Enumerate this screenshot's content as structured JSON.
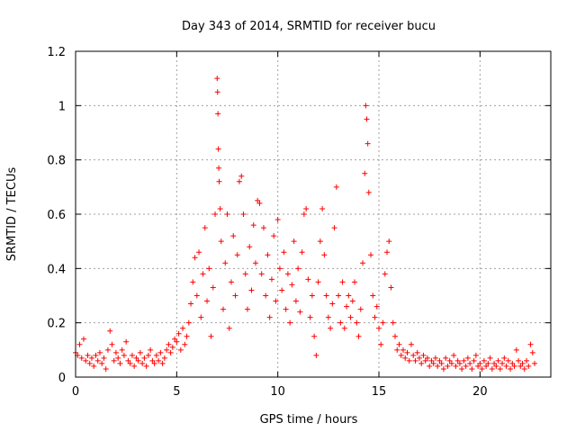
{
  "chart_data": {
    "type": "scatter",
    "title": "Day 343 of 2014, SRMTID for receiver bucu",
    "xlabel": "GPS time / hours",
    "ylabel": "SRMTID / TECUs",
    "xlim": [
      0,
      23.5
    ],
    "ylim": [
      0,
      1.2
    ],
    "grid": true,
    "x_ticks": [
      0,
      5,
      10,
      15,
      20
    ],
    "x_tick_labels": [
      "0",
      "5",
      "10",
      "15",
      "20"
    ],
    "y_ticks": [
      0,
      0.2,
      0.4,
      0.6,
      0.8,
      1,
      1.2
    ],
    "y_tick_labels": [
      "0",
      "0.2",
      "0.4",
      "0.6",
      "0.8",
      "1",
      "1.2"
    ],
    "marker": "plus",
    "series": [
      {
        "name": "SRMTID",
        "color": "#ff0000",
        "points": [
          [
            0.0,
            0.09
          ],
          [
            0.1,
            0.08
          ],
          [
            0.2,
            0.12
          ],
          [
            0.3,
            0.07
          ],
          [
            0.4,
            0.14
          ],
          [
            0.5,
            0.06
          ],
          [
            0.6,
            0.08
          ],
          [
            0.7,
            0.05
          ],
          [
            0.8,
            0.07
          ],
          [
            0.9,
            0.04
          ],
          [
            1.0,
            0.08
          ],
          [
            1.1,
            0.06
          ],
          [
            1.2,
            0.09
          ],
          [
            1.3,
            0.05
          ],
          [
            1.4,
            0.07
          ],
          [
            1.5,
            0.03
          ],
          [
            1.6,
            0.1
          ],
          [
            1.7,
            0.17
          ],
          [
            1.8,
            0.12
          ],
          [
            1.9,
            0.06
          ],
          [
            2.0,
            0.09
          ],
          [
            2.1,
            0.07
          ],
          [
            2.2,
            0.05
          ],
          [
            2.3,
            0.1
          ],
          [
            2.4,
            0.08
          ],
          [
            2.5,
            0.13
          ],
          [
            2.6,
            0.06
          ],
          [
            2.7,
            0.05
          ],
          [
            2.8,
            0.08
          ],
          [
            2.9,
            0.04
          ],
          [
            3.0,
            0.07
          ],
          [
            3.1,
            0.06
          ],
          [
            3.2,
            0.09
          ],
          [
            3.3,
            0.05
          ],
          [
            3.4,
            0.07
          ],
          [
            3.5,
            0.04
          ],
          [
            3.6,
            0.08
          ],
          [
            3.7,
            0.1
          ],
          [
            3.8,
            0.06
          ],
          [
            3.9,
            0.05
          ],
          [
            4.0,
            0.08
          ],
          [
            4.1,
            0.06
          ],
          [
            4.2,
            0.09
          ],
          [
            4.3,
            0.05
          ],
          [
            4.4,
            0.07
          ],
          [
            4.5,
            0.1
          ],
          [
            4.6,
            0.12
          ],
          [
            4.7,
            0.09
          ],
          [
            4.8,
            0.11
          ],
          [
            4.9,
            0.14
          ],
          [
            5.0,
            0.13
          ],
          [
            5.1,
            0.16
          ],
          [
            5.2,
            0.1
          ],
          [
            5.3,
            0.18
          ],
          [
            5.4,
            0.12
          ],
          [
            5.5,
            0.15
          ],
          [
            5.6,
            0.2
          ],
          [
            5.7,
            0.27
          ],
          [
            5.8,
            0.35
          ],
          [
            5.9,
            0.44
          ],
          [
            6.0,
            0.3
          ],
          [
            6.1,
            0.46
          ],
          [
            6.2,
            0.22
          ],
          [
            6.3,
            0.38
          ],
          [
            6.4,
            0.55
          ],
          [
            6.5,
            0.28
          ],
          [
            6.6,
            0.4
          ],
          [
            6.7,
            0.15
          ],
          [
            6.8,
            0.33
          ],
          [
            6.9,
            0.6
          ],
          [
            7.0,
            1.1
          ],
          [
            7.02,
            1.05
          ],
          [
            7.04,
            0.97
          ],
          [
            7.06,
            0.84
          ],
          [
            7.08,
            0.77
          ],
          [
            7.1,
            0.72
          ],
          [
            7.15,
            0.62
          ],
          [
            7.2,
            0.5
          ],
          [
            7.3,
            0.25
          ],
          [
            7.4,
            0.42
          ],
          [
            7.5,
            0.6
          ],
          [
            7.6,
            0.18
          ],
          [
            7.7,
            0.35
          ],
          [
            7.8,
            0.52
          ],
          [
            7.9,
            0.3
          ],
          [
            8.0,
            0.45
          ],
          [
            8.1,
            0.72
          ],
          [
            8.2,
            0.74
          ],
          [
            8.3,
            0.6
          ],
          [
            8.4,
            0.38
          ],
          [
            8.5,
            0.25
          ],
          [
            8.6,
            0.48
          ],
          [
            8.7,
            0.32
          ],
          [
            8.8,
            0.56
          ],
          [
            8.9,
            0.42
          ],
          [
            9.0,
            0.65
          ],
          [
            9.1,
            0.64
          ],
          [
            9.2,
            0.38
          ],
          [
            9.3,
            0.55
          ],
          [
            9.4,
            0.3
          ],
          [
            9.5,
            0.45
          ],
          [
            9.6,
            0.22
          ],
          [
            9.7,
            0.36
          ],
          [
            9.8,
            0.52
          ],
          [
            9.9,
            0.28
          ],
          [
            10.0,
            0.58
          ],
          [
            10.1,
            0.4
          ],
          [
            10.2,
            0.32
          ],
          [
            10.3,
            0.46
          ],
          [
            10.4,
            0.25
          ],
          [
            10.5,
            0.38
          ],
          [
            10.6,
            0.2
          ],
          [
            10.7,
            0.34
          ],
          [
            10.8,
            0.5
          ],
          [
            10.9,
            0.28
          ],
          [
            11.0,
            0.4
          ],
          [
            11.1,
            0.24
          ],
          [
            11.2,
            0.46
          ],
          [
            11.3,
            0.6
          ],
          [
            11.4,
            0.62
          ],
          [
            11.5,
            0.36
          ],
          [
            11.6,
            0.22
          ],
          [
            11.7,
            0.3
          ],
          [
            11.8,
            0.15
          ],
          [
            11.9,
            0.08
          ],
          [
            12.0,
            0.35
          ],
          [
            12.1,
            0.5
          ],
          [
            12.2,
            0.62
          ],
          [
            12.3,
            0.45
          ],
          [
            12.4,
            0.3
          ],
          [
            12.5,
            0.22
          ],
          [
            12.6,
            0.18
          ],
          [
            12.7,
            0.27
          ],
          [
            12.8,
            0.55
          ],
          [
            12.9,
            0.7
          ],
          [
            13.0,
            0.3
          ],
          [
            13.1,
            0.2
          ],
          [
            13.2,
            0.35
          ],
          [
            13.3,
            0.18
          ],
          [
            13.4,
            0.26
          ],
          [
            13.5,
            0.3
          ],
          [
            13.6,
            0.22
          ],
          [
            13.7,
            0.28
          ],
          [
            13.8,
            0.35
          ],
          [
            13.9,
            0.2
          ],
          [
            14.0,
            0.15
          ],
          [
            14.1,
            0.25
          ],
          [
            14.2,
            0.42
          ],
          [
            14.3,
            0.75
          ],
          [
            14.35,
            1.0
          ],
          [
            14.4,
            0.95
          ],
          [
            14.45,
            0.86
          ],
          [
            14.5,
            0.68
          ],
          [
            14.6,
            0.45
          ],
          [
            14.7,
            0.3
          ],
          [
            14.8,
            0.22
          ],
          [
            14.9,
            0.26
          ],
          [
            15.0,
            0.18
          ],
          [
            15.1,
            0.12
          ],
          [
            15.2,
            0.2
          ],
          [
            15.3,
            0.38
          ],
          [
            15.4,
            0.46
          ],
          [
            15.5,
            0.5
          ],
          [
            15.6,
            0.33
          ],
          [
            15.7,
            0.2
          ],
          [
            15.8,
            0.15
          ],
          [
            15.9,
            0.1
          ],
          [
            16.0,
            0.12
          ],
          [
            16.1,
            0.08
          ],
          [
            16.2,
            0.1
          ],
          [
            16.3,
            0.07
          ],
          [
            16.4,
            0.09
          ],
          [
            16.5,
            0.06
          ],
          [
            16.6,
            0.12
          ],
          [
            16.7,
            0.08
          ],
          [
            16.8,
            0.06
          ],
          [
            16.9,
            0.09
          ],
          [
            17.0,
            0.07
          ],
          [
            17.1,
            0.05
          ],
          [
            17.2,
            0.08
          ],
          [
            17.3,
            0.06
          ],
          [
            17.4,
            0.07
          ],
          [
            17.5,
            0.04
          ],
          [
            17.6,
            0.06
          ],
          [
            17.7,
            0.05
          ],
          [
            17.8,
            0.07
          ],
          [
            17.9,
            0.04
          ],
          [
            18.0,
            0.06
          ],
          [
            18.1,
            0.05
          ],
          [
            18.2,
            0.03
          ],
          [
            18.3,
            0.07
          ],
          [
            18.4,
            0.04
          ],
          [
            18.5,
            0.06
          ],
          [
            18.6,
            0.05
          ],
          [
            18.7,
            0.08
          ],
          [
            18.8,
            0.04
          ],
          [
            18.9,
            0.06
          ],
          [
            19.0,
            0.05
          ],
          [
            19.1,
            0.03
          ],
          [
            19.2,
            0.06
          ],
          [
            19.3,
            0.04
          ],
          [
            19.4,
            0.07
          ],
          [
            19.5,
            0.05
          ],
          [
            19.6,
            0.03
          ],
          [
            19.7,
            0.06
          ],
          [
            19.8,
            0.08
          ],
          [
            19.9,
            0.04
          ],
          [
            20.0,
            0.05
          ],
          [
            20.1,
            0.03
          ],
          [
            20.2,
            0.06
          ],
          [
            20.3,
            0.04
          ],
          [
            20.4,
            0.05
          ],
          [
            20.5,
            0.07
          ],
          [
            20.6,
            0.03
          ],
          [
            20.7,
            0.05
          ],
          [
            20.8,
            0.04
          ],
          [
            20.9,
            0.06
          ],
          [
            21.0,
            0.03
          ],
          [
            21.1,
            0.05
          ],
          [
            21.2,
            0.07
          ],
          [
            21.3,
            0.04
          ],
          [
            21.4,
            0.06
          ],
          [
            21.5,
            0.03
          ],
          [
            21.6,
            0.05
          ],
          [
            21.7,
            0.04
          ],
          [
            21.8,
            0.1
          ],
          [
            21.9,
            0.06
          ],
          [
            22.0,
            0.04
          ],
          [
            22.1,
            0.05
          ],
          [
            22.2,
            0.03
          ],
          [
            22.3,
            0.06
          ],
          [
            22.4,
            0.04
          ],
          [
            22.5,
            0.12
          ],
          [
            22.6,
            0.09
          ],
          [
            22.7,
            0.05
          ]
        ]
      }
    ]
  }
}
